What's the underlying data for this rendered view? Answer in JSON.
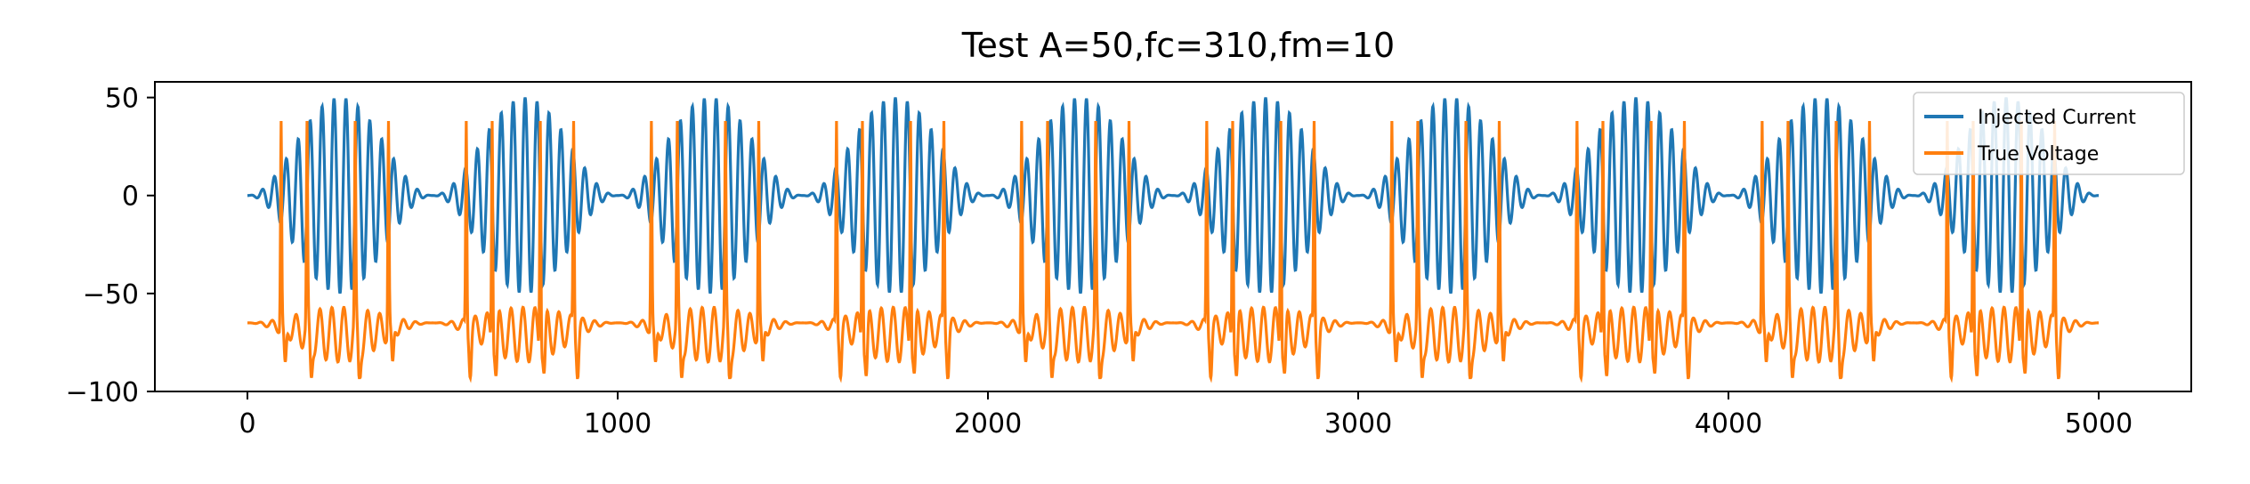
{
  "chart_data": {
    "type": "line",
    "title": "Test A=50,fc=310,fm=10",
    "xlabel": "",
    "ylabel": "",
    "xlim": [
      -250,
      5250
    ],
    "ylim": [
      -100,
      58
    ],
    "xticks": [
      0,
      1000,
      2000,
      3000,
      4000,
      5000
    ],
    "xtick_labels": [
      "0",
      "1000",
      "2000",
      "3000",
      "4000",
      "5000"
    ],
    "yticks": [
      -100,
      -50,
      0,
      50
    ],
    "ytick_labels": [
      "−100",
      "−50",
      "0",
      "50"
    ],
    "grid": false,
    "legend_position": "top-right",
    "series": [
      {
        "name": "Injected Current",
        "color": "#1f77b4",
        "description_params": {
          "amplitude": 50,
          "fc": 310,
          "fm": 10
        },
        "x": [
          0,
          500,
          1000,
          1500,
          2000,
          2500,
          3000,
          3500,
          4000,
          4500,
          5000
        ],
        "envelope_peaks_at": [
          250,
          750,
          1250,
          1750,
          2250,
          2750,
          3250,
          3750,
          4250,
          4750
        ],
        "envelope_peak_value": 50,
        "envelope_trough_value": 0
      },
      {
        "name": "True Voltage",
        "color": "#ff7f0e",
        "resting_level": -65,
        "spike_peak": 38,
        "trough_min": -93,
        "spike_times_approx": [
          90,
          160,
          290,
          380,
          590,
          660,
          790,
          880,
          1090,
          1160,
          1290,
          1380,
          1590,
          1660,
          1790,
          1880,
          2090,
          2160,
          2290,
          2380,
          2590,
          2660,
          2790,
          2880,
          3090,
          3160,
          3290,
          3380,
          3590,
          3660,
          3790,
          3880,
          4090,
          4160,
          4290,
          4380,
          4590,
          4660,
          4790,
          4880
        ]
      }
    ]
  }
}
